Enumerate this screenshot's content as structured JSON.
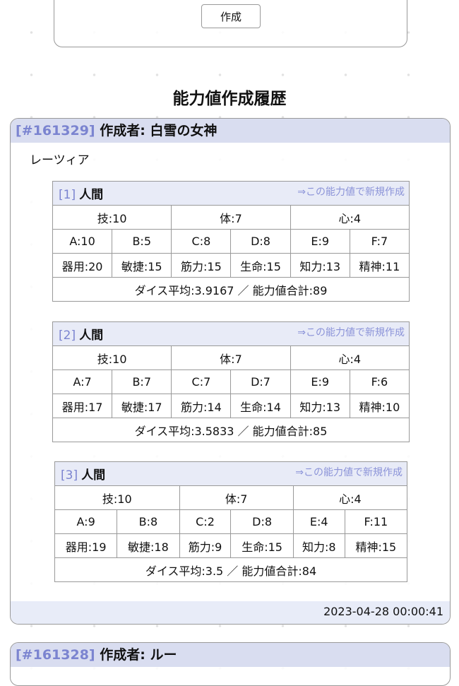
{
  "top": {
    "create_label": "作成"
  },
  "page_title": "能力値作成履歴",
  "entries": [
    {
      "id": "[#161329]",
      "author": "作成者: 白雪の女神",
      "character": "レーツィア",
      "timestamp": "2023-04-28 00:00:41",
      "rolls": [
        {
          "num": "[1]",
          "race": "人間",
          "link": "⇒この能力値で新規作成",
          "base": [
            "技:10",
            "体:7",
            "心:4"
          ],
          "dice": [
            "A:10",
            "B:5",
            "C:8",
            "D:8",
            "E:9",
            "F:7"
          ],
          "stats": [
            "器用:20",
            "敏捷:15",
            "筋力:15",
            "生命:15",
            "知力:13",
            "精神:11"
          ],
          "summary": "ダイス平均:3.9167 ／ 能力値合計:89"
        },
        {
          "num": "[2]",
          "race": "人間",
          "link": "⇒この能力値で新規作成",
          "base": [
            "技:10",
            "体:7",
            "心:4"
          ],
          "dice": [
            "A:7",
            "B:7",
            "C:7",
            "D:7",
            "E:9",
            "F:6"
          ],
          "stats": [
            "器用:17",
            "敏捷:17",
            "筋力:14",
            "生命:14",
            "知力:13",
            "精神:10"
          ],
          "summary": "ダイス平均:3.5833 ／ 能力値合計:85"
        },
        {
          "num": "[3]",
          "race": "人間",
          "link": "⇒この能力値で新規作成",
          "base": [
            "技:10",
            "体:7",
            "心:4"
          ],
          "dice": [
            "A:9",
            "B:8",
            "C:2",
            "D:8",
            "E:4",
            "F:11"
          ],
          "stats": [
            "器用:19",
            "敏捷:18",
            "筋力:9",
            "生命:15",
            "知力:8",
            "精神:15"
          ],
          "summary": "ダイス平均:3.5 ／ 能力値合計:84"
        }
      ]
    },
    {
      "id": "[#161328]",
      "author": "作成者: ルー"
    }
  ]
}
